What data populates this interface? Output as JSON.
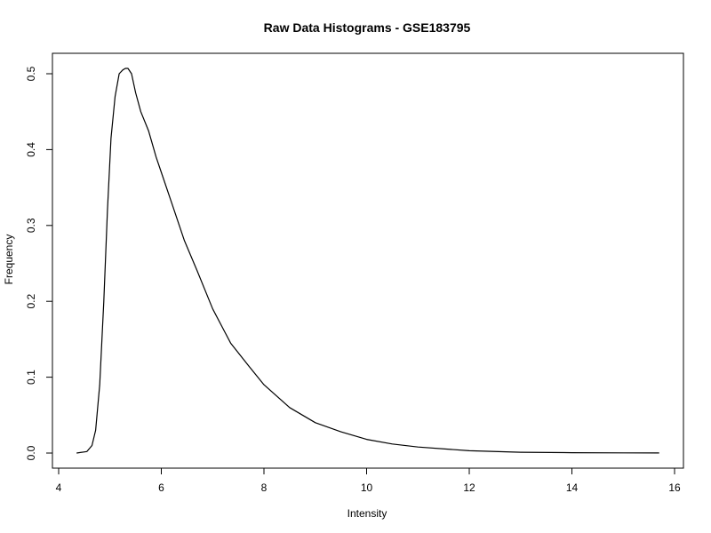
{
  "chart_data": {
    "type": "line",
    "title": "Raw Data Histograms - GSE183795",
    "xlabel": "Intensity",
    "ylabel": "Frequency",
    "xlim": [
      4.0,
      16.0
    ],
    "ylim": [
      0.0,
      0.5
    ],
    "x_ticks": [
      4,
      6,
      8,
      10,
      12,
      14,
      16
    ],
    "x_tick_labels": [
      "4",
      "6",
      "8",
      "10",
      "12",
      "14",
      "16"
    ],
    "y_ticks": [
      0.0,
      0.1,
      0.2,
      0.3,
      0.4,
      0.5
    ],
    "y_tick_labels": [
      "0.0",
      "0.1",
      "0.2",
      "0.3",
      "0.4",
      "0.5"
    ],
    "grid": false,
    "line_color": "#000000",
    "series": [
      {
        "x": [
          4.35,
          4.55,
          4.65,
          4.72,
          4.8,
          4.88,
          4.95,
          5.02,
          5.1,
          5.18,
          5.25,
          5.3,
          5.35,
          5.42,
          5.5,
          5.6,
          5.75,
          5.9,
          6.0,
          6.2,
          6.45,
          6.7,
          7.0,
          7.35,
          7.7,
          8.0,
          8.5,
          9.0,
          9.5,
          10.0,
          10.5,
          11.0,
          12.0,
          13.0,
          14.0,
          15.0,
          15.7
        ],
        "y": [
          0.0,
          0.002,
          0.01,
          0.03,
          0.09,
          0.2,
          0.32,
          0.415,
          0.47,
          0.5,
          0.505,
          0.507,
          0.507,
          0.5,
          0.475,
          0.45,
          0.425,
          0.39,
          0.37,
          0.33,
          0.28,
          0.24,
          0.19,
          0.145,
          0.115,
          0.09,
          0.06,
          0.04,
          0.028,
          0.018,
          0.012,
          0.008,
          0.003,
          0.001,
          0.0005,
          0.0002,
          0.0001
        ]
      }
    ]
  }
}
